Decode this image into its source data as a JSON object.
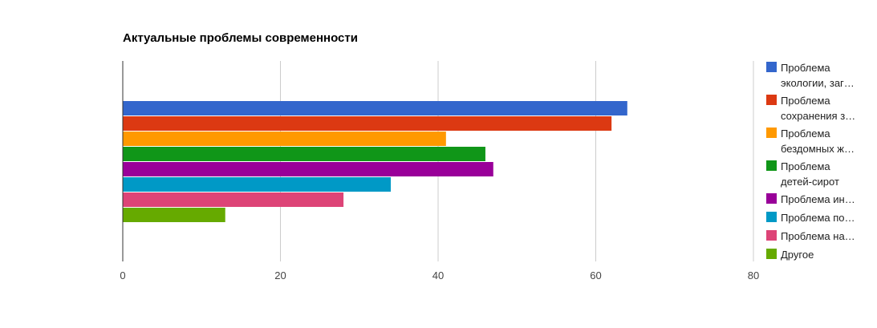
{
  "chart_data": {
    "type": "bar",
    "orientation": "horizontal",
    "title": "Актуальные проблемы современности",
    "xlabel": "",
    "ylabel": "",
    "xlim": [
      0,
      80
    ],
    "x_ticks": [
      0,
      20,
      40,
      60,
      80
    ],
    "grid": true,
    "legend_position": "right",
    "series": [
      {
        "name": "Проблема экологии, заг...",
        "legend_lines": [
          "Проблема",
          "экологии, заг…"
        ],
        "value": 64,
        "color": "#3366cc"
      },
      {
        "name": "Проблема сохранения з...",
        "legend_lines": [
          "Проблема",
          "сохранения з…"
        ],
        "value": 62,
        "color": "#dc3912"
      },
      {
        "name": "Проблема бездомных ж...",
        "legend_lines": [
          "Проблема",
          "бездомных ж…"
        ],
        "value": 41,
        "color": "#ff9900"
      },
      {
        "name": "Проблема детей-сирот",
        "legend_lines": [
          "Проблема",
          "детей-сирот"
        ],
        "value": 46,
        "color": "#109618"
      },
      {
        "name": "Проблема ин...",
        "legend_lines": [
          "Проблема ин…"
        ],
        "value": 47,
        "color": "#990099"
      },
      {
        "name": "Проблема по...",
        "legend_lines": [
          "Проблема по…"
        ],
        "value": 34,
        "color": "#0099c6"
      },
      {
        "name": "Проблема на...",
        "legend_lines": [
          "Проблема на…"
        ],
        "value": 28,
        "color": "#dd4477"
      },
      {
        "name": "Другое",
        "legend_lines": [
          "Другое"
        ],
        "value": 13,
        "color": "#66aa00"
      }
    ]
  }
}
